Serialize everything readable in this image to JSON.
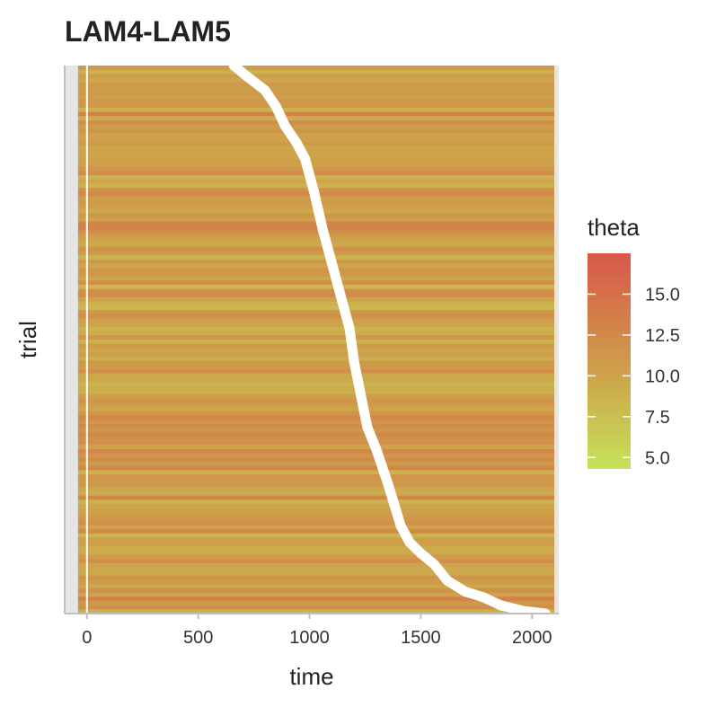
{
  "chart_data": {
    "type": "heatmap",
    "title": "LAM4-LAM5",
    "xlabel": "time",
    "ylabel": "trial",
    "xlim": [
      -100,
      2120
    ],
    "x_data_range": [
      -40,
      2100
    ],
    "x_ticks": [
      0,
      500,
      1000,
      1500,
      2000
    ],
    "y_ticks": [],
    "n_trials": 130,
    "grid": "on",
    "zero_line": 0,
    "legend": {
      "title": "theta",
      "position": "right",
      "range": [
        4.3,
        17.5
      ],
      "ticks": [
        5.0,
        7.5,
        10.0,
        12.5,
        15.0
      ],
      "tick_labels": [
        "5.0",
        "7.5",
        "10.0",
        "12.5",
        "15.0"
      ],
      "low_color": "#c5e35a",
      "mid_color": "#cea04a",
      "high_color": "#d9574a"
    },
    "marker_curve": {
      "description": "white markers: response time per trial, sorted",
      "points": [
        [
          660,
          0.0
        ],
        [
          720,
          0.02
        ],
        [
          800,
          0.045
        ],
        [
          850,
          0.075
        ],
        [
          890,
          0.11
        ],
        [
          940,
          0.14
        ],
        [
          980,
          0.17
        ],
        [
          1020,
          0.23
        ],
        [
          1060,
          0.3
        ],
        [
          1100,
          0.36
        ],
        [
          1140,
          0.42
        ],
        [
          1180,
          0.48
        ],
        [
          1200,
          0.54
        ],
        [
          1230,
          0.6
        ],
        [
          1260,
          0.66
        ],
        [
          1300,
          0.7
        ],
        [
          1350,
          0.76
        ],
        [
          1380,
          0.8
        ],
        [
          1410,
          0.84
        ],
        [
          1450,
          0.87
        ],
        [
          1500,
          0.89
        ],
        [
          1560,
          0.91
        ],
        [
          1620,
          0.94
        ],
        [
          1700,
          0.96
        ],
        [
          1780,
          0.97
        ],
        [
          1860,
          0.985
        ],
        [
          1960,
          0.995
        ],
        [
          2060,
          1.0
        ]
      ]
    }
  },
  "colors": {
    "panel_background": "#e5e5e5",
    "grid": "#ebebeb",
    "axis_line": "#bfbfbf",
    "marker": "#ffffff"
  }
}
